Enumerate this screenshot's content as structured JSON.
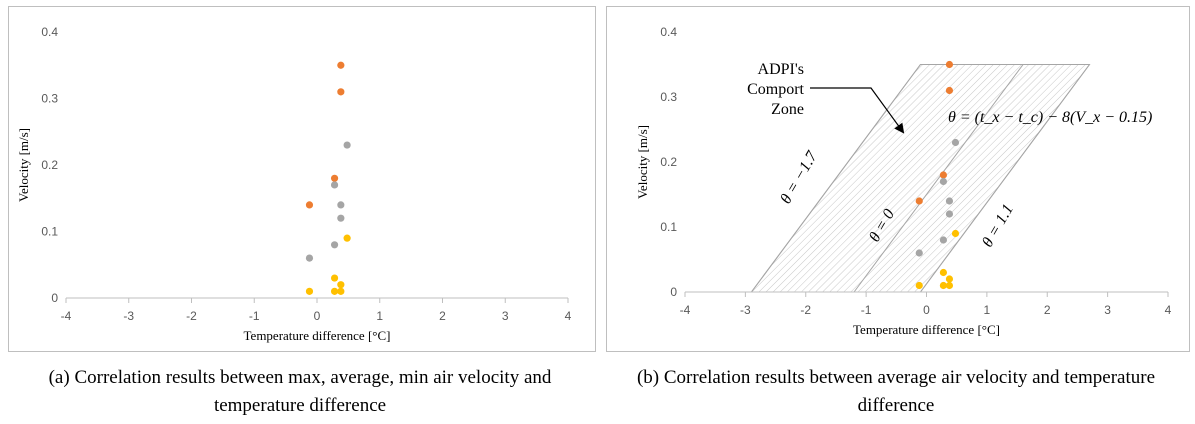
{
  "chart_data": [
    {
      "type": "scatter",
      "xlabel": "Temperature difference [°C]",
      "ylabel": "Velocity [m/s]",
      "xlim": [
        -4,
        4
      ],
      "ylim": [
        0,
        0.4
      ],
      "xticks": [
        "-4",
        "-3",
        "-2",
        "-1",
        "0",
        "1",
        "2",
        "3",
        "4"
      ],
      "yticks": [
        "0",
        "0.1",
        "0.2",
        "0.3",
        "0.4"
      ],
      "grid": false,
      "series": [
        {
          "color": "#ed7d31",
          "points": [
            [
              0.38,
              0.35
            ],
            [
              0.38,
              0.31
            ],
            [
              0.28,
              0.18
            ],
            [
              -0.12,
              0.14
            ]
          ]
        },
        {
          "color": "#a5a5a5",
          "points": [
            [
              0.48,
              0.23
            ],
            [
              0.28,
              0.17
            ],
            [
              0.38,
              0.14
            ],
            [
              0.38,
              0.12
            ],
            [
              0.28,
              0.08
            ],
            [
              -0.12,
              0.06
            ]
          ]
        },
        {
          "color": "#ffc000",
          "points": [
            [
              0.48,
              0.09
            ],
            [
              0.28,
              0.03
            ],
            [
              0.38,
              0.02
            ],
            [
              0.28,
              0.01
            ],
            [
              0.38,
              0.01
            ],
            [
              -0.12,
              0.01
            ]
          ]
        }
      ],
      "caption": "(a) Correlation results between max, average, min air velocity and temperature difference"
    },
    {
      "type": "scatter",
      "xlabel": "Temperature difference [°C]",
      "ylabel": "Velocity [m/s]",
      "xlim": [
        -4,
        4
      ],
      "ylim": [
        0,
        0.4
      ],
      "xticks": [
        "-4",
        "-3",
        "-2",
        "-1",
        "0",
        "1",
        "2",
        "3",
        "4"
      ],
      "yticks": [
        "0",
        "0.1",
        "0.2",
        "0.3",
        "0.4"
      ],
      "grid": false,
      "series": [
        {
          "color": "#ed7d31",
          "points": [
            [
              0.38,
              0.35
            ],
            [
              0.38,
              0.31
            ],
            [
              0.28,
              0.18
            ],
            [
              -0.12,
              0.14
            ]
          ]
        },
        {
          "color": "#a5a5a5",
          "points": [
            [
              0.48,
              0.23
            ],
            [
              0.28,
              0.17
            ],
            [
              0.38,
              0.14
            ],
            [
              0.38,
              0.12
            ],
            [
              0.28,
              0.08
            ],
            [
              -0.12,
              0.06
            ]
          ]
        },
        {
          "color": "#ffc000",
          "points": [
            [
              0.48,
              0.09
            ],
            [
              0.28,
              0.03
            ],
            [
              0.38,
              0.02
            ],
            [
              0.28,
              0.01
            ],
            [
              0.38,
              0.01
            ],
            [
              -0.12,
              0.01
            ]
          ]
        }
      ],
      "comfort_zone": {
        "label_lines": [
          "ADPI's",
          "Comport",
          "Zone"
        ],
        "formula": "θ = (t_x − t_c) − 8(V_x − 0.15)",
        "lines": [
          {
            "label": "θ = −1.7",
            "theta": -1.7
          },
          {
            "label": "θ = 0",
            "theta": 0
          },
          {
            "label": "θ = 1.1",
            "theta": 1.1
          }
        ],
        "v_range": [
          0,
          0.35
        ]
      },
      "caption": "(b) Correlation results between average air velocity and temperature difference"
    }
  ]
}
